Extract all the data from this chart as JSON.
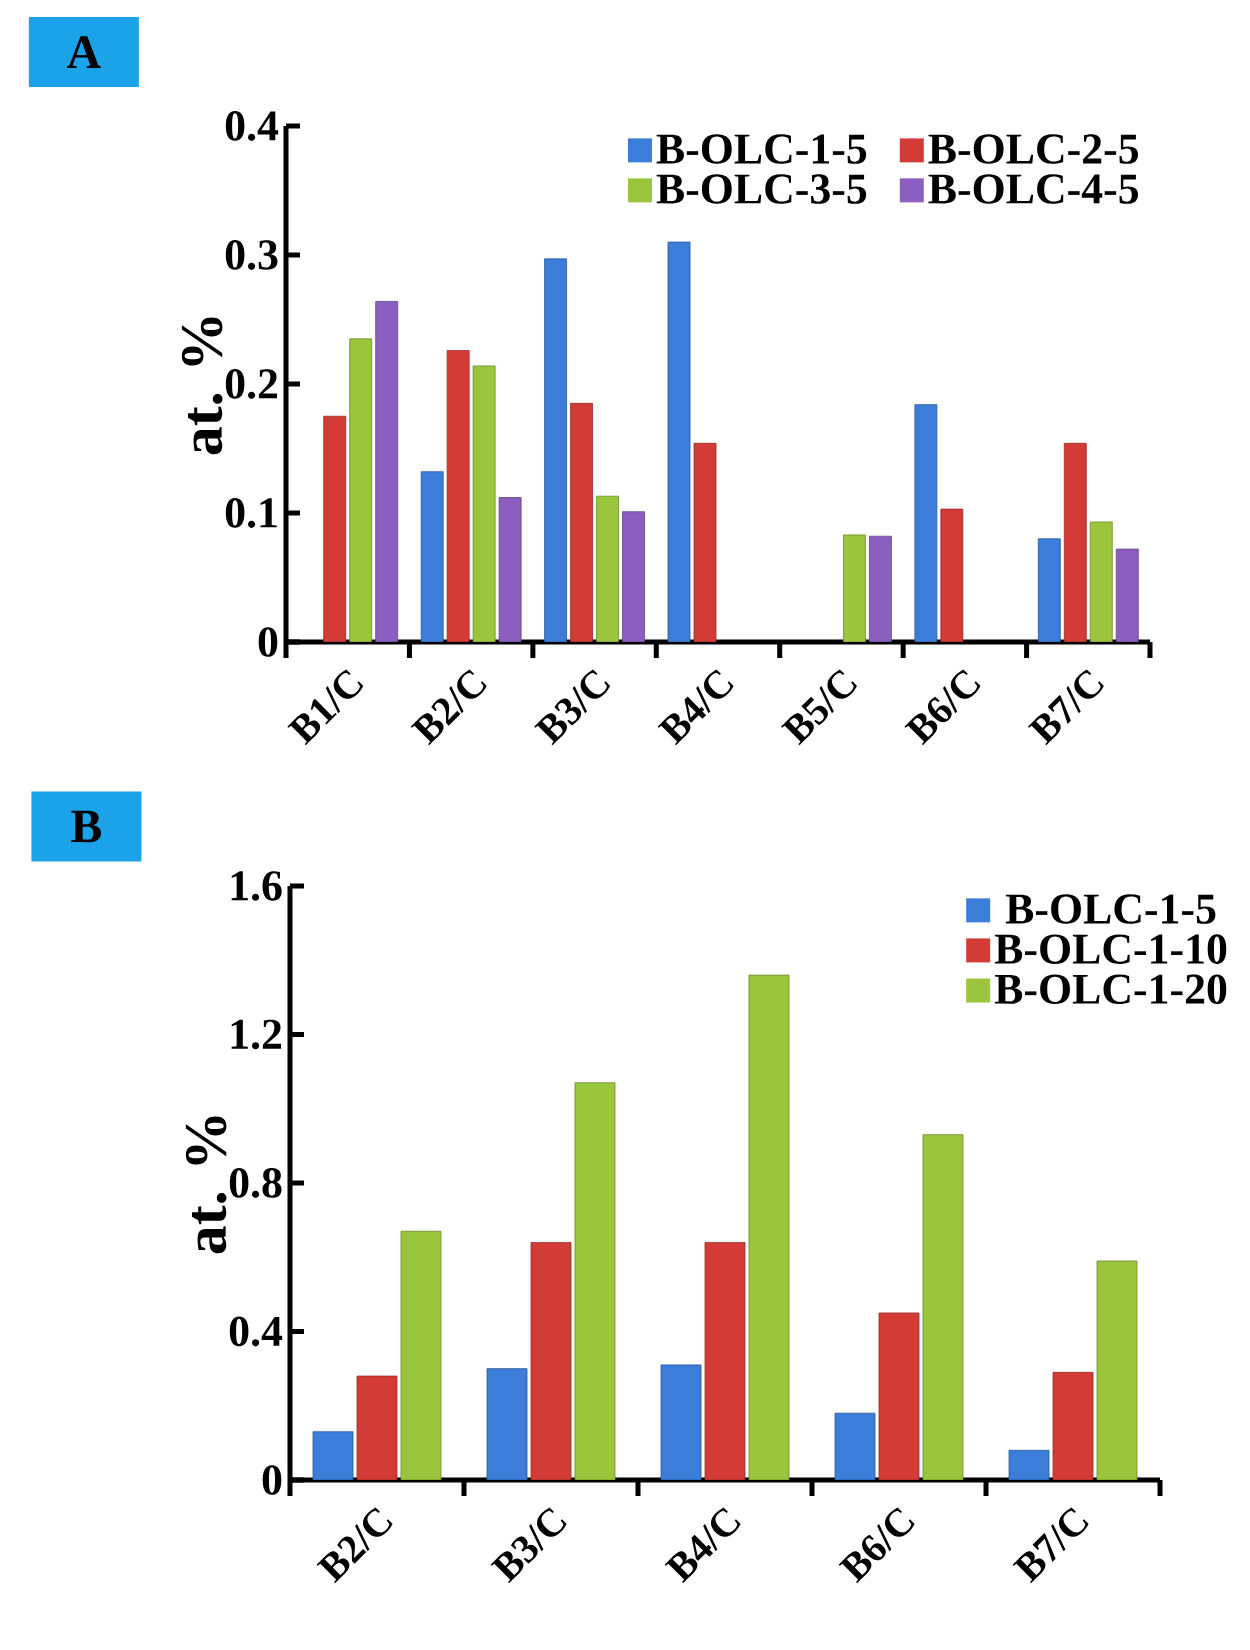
{
  "chart_data": [
    {
      "type": "bar",
      "title": "A",
      "ylabel": "at. %",
      "categories": [
        "B1/C",
        "B2/C",
        "B3/C",
        "B4/C",
        "B5/C",
        "B6/C",
        "B7/C"
      ],
      "ylim": [
        0,
        0.4
      ],
      "yticks": [
        0,
        0.1,
        0.2,
        0.3,
        0.4
      ],
      "legend": "top right",
      "series": [
        {
          "name": "B-OLC-1-5",
          "color": "#3b7dd8",
          "values": [
            null,
            0.132,
            0.297,
            0.31,
            null,
            0.184,
            0.08
          ]
        },
        {
          "name": "B-OLC-2-5",
          "color": "#d33b36",
          "values": [
            0.175,
            0.226,
            0.185,
            0.154,
            null,
            0.103,
            0.154
          ]
        },
        {
          "name": "B-OLC-3-5",
          "color": "#9bc53d",
          "values": [
            0.235,
            0.214,
            0.113,
            null,
            0.083,
            null,
            0.093
          ]
        },
        {
          "name": "B-OLC-4-5",
          "color": "#8b5fbf",
          "values": [
            0.264,
            0.112,
            0.101,
            null,
            0.082,
            null,
            0.072
          ]
        }
      ]
    },
    {
      "type": "bar",
      "title": "B",
      "ylabel": "at. %",
      "categories": [
        "B2/C",
        "B3/C",
        "B4/C",
        "B6/C",
        "B7/C"
      ],
      "ylim": [
        0,
        1.6
      ],
      "yticks": [
        0,
        0.4,
        0.8,
        1.2,
        1.6
      ],
      "legend": "top right",
      "series": [
        {
          "name": "B-OLC-1-5",
          "color": "#3b7dd8",
          "values": [
            0.13,
            0.3,
            0.31,
            0.18,
            0.08
          ]
        },
        {
          "name": "B-OLC-1-10",
          "color": "#d33b36",
          "values": [
            0.28,
            0.64,
            0.64,
            0.45,
            0.29
          ]
        },
        {
          "name": "B-OLC-1-20",
          "color": "#9bc53d",
          "values": [
            0.67,
            1.07,
            1.36,
            0.93,
            0.59
          ]
        }
      ]
    }
  ]
}
